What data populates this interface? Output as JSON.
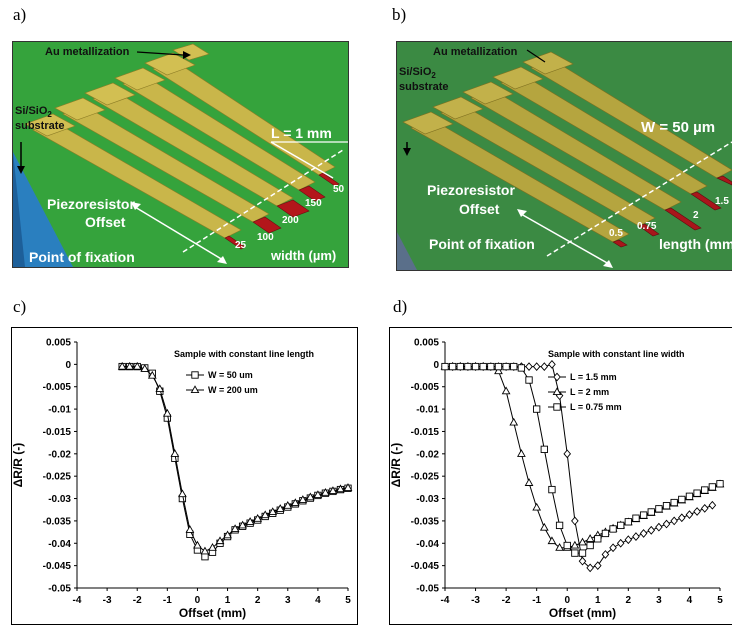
{
  "panels": [
    {
      "letter": "a)",
      "au_label": "Au metallization",
      "substrate_1": "Si/SiO",
      "substrate_sub": "2",
      "substrate_2": "substrate",
      "dim_label": "L = 1 mm",
      "piezo_1": "Piezoresistor",
      "piezo_2": "Offset",
      "fixation": "Point of fixation",
      "axis_label": "width (µm)",
      "values": [
        "25",
        "100",
        "200",
        "150",
        "50"
      ]
    },
    {
      "letter": "b)",
      "au_label": "Au metallization",
      "substrate_1": "Si/SiO",
      "substrate_sub": "2",
      "substrate_2": "substrate",
      "dim_label": "W = 50 µm",
      "piezo_1": "Piezoresistor",
      "piezo_2": "Offset",
      "fixation": "Point of fixation",
      "axis_label": "length (mm",
      "values": [
        "0.5",
        "0.75",
        "2",
        "1.5"
      ]
    }
  ],
  "chart_data": [
    {
      "panel_letter": "c)",
      "type": "line",
      "note": "Sample with constant line length",
      "xlabel": "Offset (mm)",
      "ylabel": "ΔR/R (-)",
      "xlim": [
        -4,
        5
      ],
      "ylim": [
        -0.05,
        0.005
      ],
      "xticks": [
        -4,
        -3,
        -2,
        -1,
        0,
        1,
        2,
        3,
        4,
        5
      ],
      "yticks": [
        0.005,
        0,
        -0.005,
        -0.01,
        -0.015,
        -0.02,
        -0.025,
        -0.03,
        -0.035,
        -0.04,
        -0.045,
        -0.05
      ],
      "series": [
        {
          "name": "W = 50 um",
          "marker": "square",
          "x": [
            -2.5,
            -2.25,
            -2.0,
            -1.75,
            -1.5,
            -1.25,
            -1.0,
            -0.75,
            -0.5,
            -0.25,
            0.0,
            0.25,
            0.5,
            0.75,
            1.0,
            1.25,
            1.5,
            1.75,
            2.0,
            2.25,
            2.5,
            2.75,
            3.0,
            3.25,
            3.5,
            3.75,
            4.0,
            4.25,
            4.5,
            4.75,
            5.0
          ],
          "y": [
            -0.0005,
            -0.0005,
            -0.0005,
            -0.0008,
            -0.002,
            -0.006,
            -0.012,
            -0.021,
            -0.03,
            -0.038,
            -0.0415,
            -0.043,
            -0.042,
            -0.04,
            -0.0385,
            -0.037,
            -0.0362,
            -0.0355,
            -0.0348,
            -0.034,
            -0.0333,
            -0.0326,
            -0.0319,
            -0.0312,
            -0.0305,
            -0.0299,
            -0.0293,
            -0.0288,
            -0.0284,
            -0.028,
            -0.0277
          ]
        },
        {
          "name": "W = 200 um",
          "marker": "triangle",
          "x": [
            -2.5,
            -2.25,
            -2.0,
            -1.75,
            -1.5,
            -1.25,
            -1.0,
            -0.75,
            -0.5,
            -0.25,
            0.0,
            0.25,
            0.5,
            0.75,
            1.0,
            1.25,
            1.5,
            1.75,
            2.0,
            2.25,
            2.5,
            2.75,
            3.0,
            3.25,
            3.5,
            3.75,
            4.0,
            4.25,
            4.5,
            4.75,
            5.0
          ],
          "y": [
            -0.0005,
            -0.0005,
            -0.0005,
            -0.001,
            -0.0025,
            -0.0055,
            -0.011,
            -0.02,
            -0.029,
            -0.037,
            -0.0405,
            -0.0418,
            -0.041,
            -0.0395,
            -0.0382,
            -0.0368,
            -0.036,
            -0.0352,
            -0.0345,
            -0.0337,
            -0.033,
            -0.0323,
            -0.0316,
            -0.031,
            -0.0303,
            -0.0297,
            -0.0292,
            -0.0287,
            -0.0283,
            -0.0279,
            -0.0276
          ]
        }
      ]
    },
    {
      "panel_letter": "d)",
      "type": "line",
      "note": "Sample with constant line width",
      "xlabel": "Offset (mm)",
      "ylabel": "ΔR/R (-)",
      "xlim": [
        -4,
        5
      ],
      "ylim": [
        -0.05,
        0.005
      ],
      "xticks": [
        -4,
        -3,
        -2,
        -1,
        0,
        1,
        2,
        3,
        4,
        5
      ],
      "yticks": [
        0.005,
        0,
        -0.005,
        -0.01,
        -0.015,
        -0.02,
        -0.025,
        -0.03,
        -0.035,
        -0.04,
        -0.045,
        -0.05
      ],
      "series": [
        {
          "name": "L = 1.5 mm",
          "marker": "diamond",
          "x": [
            -4.0,
            -3.75,
            -3.5,
            -3.25,
            -3.0,
            -2.75,
            -2.5,
            -2.25,
            -2.0,
            -1.75,
            -1.5,
            -1.25,
            -1.0,
            -0.75,
            -0.5,
            -0.25,
            0.0,
            0.25,
            0.5,
            0.75,
            1.0,
            1.25,
            1.5,
            1.75,
            2.0,
            2.25,
            2.5,
            2.75,
            3.0,
            3.25,
            3.5,
            3.75,
            4.0,
            4.25,
            4.5,
            4.75
          ],
          "y": [
            -0.0005,
            -0.0005,
            -0.0005,
            -0.0005,
            -0.0005,
            -0.0005,
            -0.0005,
            -0.0005,
            -0.0005,
            -0.0005,
            -0.0005,
            -0.0005,
            -0.0005,
            -0.0005,
            0.0,
            -0.007,
            -0.02,
            -0.035,
            -0.044,
            -0.0455,
            -0.045,
            -0.0425,
            -0.041,
            -0.04,
            -0.0392,
            -0.0385,
            -0.0378,
            -0.0371,
            -0.0364,
            -0.0357,
            -0.035,
            -0.0343,
            -0.0336,
            -0.0329,
            -0.0322,
            -0.0315
          ]
        },
        {
          "name": "L = 2 mm",
          "marker": "triangle",
          "x": [
            -4.0,
            -3.75,
            -3.5,
            -3.25,
            -3.0,
            -2.75,
            -2.5,
            -2.25,
            -2.0,
            -1.75,
            -1.5,
            -1.25,
            -1.0,
            -0.75,
            -0.5,
            -0.25,
            0.0,
            0.25,
            0.5,
            0.75,
            1.0,
            1.25,
            1.5,
            1.75,
            2.0,
            2.25,
            2.5,
            2.75,
            3.0,
            3.25,
            3.5,
            3.75,
            4.0,
            4.25,
            4.5,
            4.75,
            5.0
          ],
          "y": [
            -0.0005,
            -0.0005,
            -0.0005,
            -0.0005,
            -0.0005,
            -0.0005,
            -0.0006,
            -0.0015,
            -0.006,
            -0.013,
            -0.02,
            -0.0265,
            -0.032,
            -0.0365,
            -0.0395,
            -0.041,
            -0.041,
            -0.0405,
            -0.0398,
            -0.039,
            -0.0382,
            -0.0375,
            -0.0367,
            -0.036,
            -0.0353,
            -0.0346,
            -0.0339,
            -0.0332,
            -0.0325,
            -0.0318,
            -0.0311,
            -0.0304,
            -0.0297,
            -0.029,
            -0.0283,
            -0.0276,
            -0.0268
          ]
        },
        {
          "name": "L = 0.75 mm",
          "marker": "square",
          "x": [
            -4.0,
            -3.75,
            -3.5,
            -3.25,
            -3.0,
            -2.75,
            -2.5,
            -2.25,
            -2.0,
            -1.75,
            -1.5,
            -1.25,
            -1.0,
            -0.75,
            -0.5,
            -0.25,
            0.0,
            0.25,
            0.5,
            0.75,
            1.0,
            1.25,
            1.5,
            1.75,
            2.0,
            2.25,
            2.5,
            2.75,
            3.0,
            3.25,
            3.5,
            3.75,
            4.0,
            4.25,
            4.5,
            4.75,
            5.0
          ],
          "y": [
            -0.0005,
            -0.0005,
            -0.0005,
            -0.0005,
            -0.0005,
            -0.0005,
            -0.0005,
            -0.0005,
            -0.0005,
            -0.0005,
            -0.0008,
            -0.0035,
            -0.01,
            -0.019,
            -0.028,
            -0.036,
            -0.0405,
            -0.0422,
            -0.0422,
            -0.0405,
            -0.039,
            -0.0378,
            -0.0368,
            -0.036,
            -0.0352,
            -0.0344,
            -0.0337,
            -0.033,
            -0.0323,
            -0.0316,
            -0.0309,
            -0.0302,
            -0.0295,
            -0.0288,
            -0.0281,
            -0.0274,
            -0.0267
          ]
        }
      ]
    }
  ]
}
